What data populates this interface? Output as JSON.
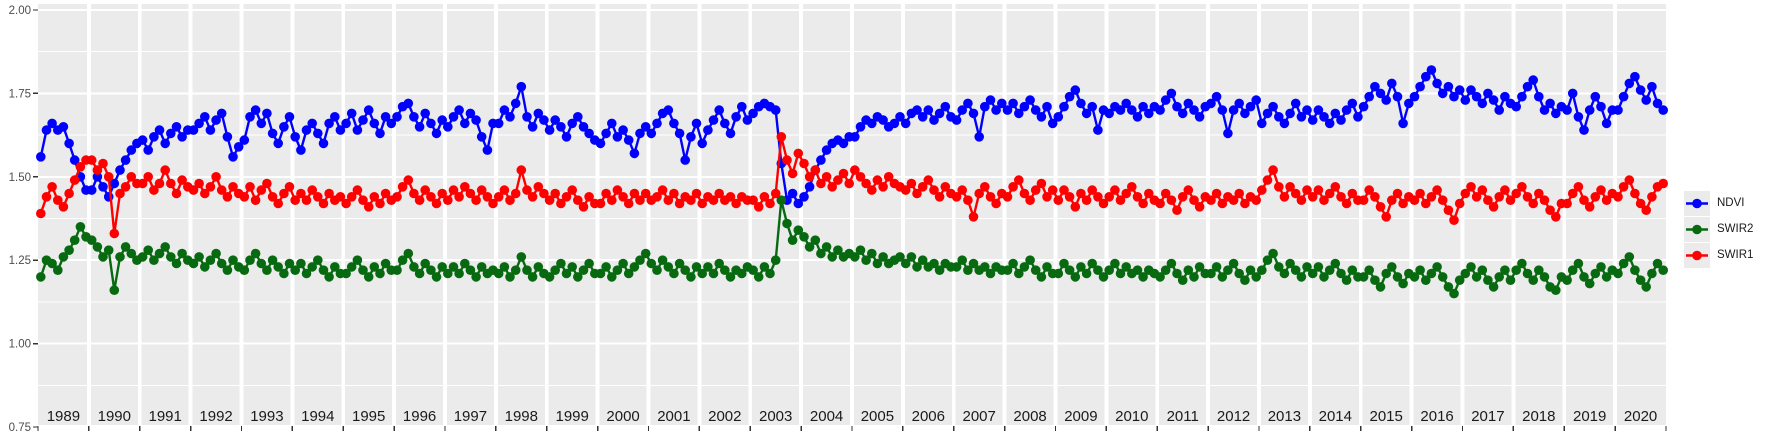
{
  "chart_data": {
    "type": "line",
    "title": "",
    "xlabel": "",
    "ylabel": "",
    "ylim": [
      0.75,
      2.0
    ],
    "grid": true,
    "legend_position": "right",
    "colors": {
      "panel_background": "#EBEBEB",
      "gridline": "#FFFFFF",
      "axis_text": "#4D4D4D",
      "year_label_text": "#1A1A1A",
      "tick_mark": "#333333"
    },
    "ytick_labels": [
      "2.00",
      "1.75",
      "1.50",
      "1.25",
      "1.00",
      "0.75"
    ],
    "ytick_values": [
      2.0,
      1.75,
      1.5,
      1.25,
      1.0,
      0.75
    ],
    "years": [
      1989,
      1990,
      1991,
      1992,
      1993,
      1994,
      1995,
      1996,
      1997,
      1998,
      1999,
      2000,
      2001,
      2002,
      2003,
      2004,
      2005,
      2006,
      2007,
      2008,
      2009,
      2010,
      2011,
      2012,
      2013,
      2014,
      2015,
      2016,
      2017,
      2018,
      2019,
      2020
    ],
    "points_per_year": 9,
    "series": [
      {
        "name": "NDVI",
        "color": "#0000FF",
        "values_by_year": [
          [
            1.56,
            1.64,
            1.66,
            1.64,
            1.65,
            1.6,
            1.55,
            1.5,
            1.46
          ],
          [
            1.46,
            1.5,
            1.47,
            1.44,
            1.48,
            1.52,
            1.55,
            1.58,
            1.6
          ],
          [
            1.61,
            1.58,
            1.62,
            1.64,
            1.6,
            1.63,
            1.65,
            1.62,
            1.64
          ],
          [
            1.64,
            1.66,
            1.68,
            1.64,
            1.67,
            1.69,
            1.62,
            1.56,
            1.59
          ],
          [
            1.61,
            1.68,
            1.7,
            1.66,
            1.69,
            1.63,
            1.6,
            1.65,
            1.68
          ],
          [
            1.62,
            1.58,
            1.64,
            1.66,
            1.63,
            1.6,
            1.66,
            1.68,
            1.64
          ],
          [
            1.66,
            1.69,
            1.64,
            1.67,
            1.7,
            1.66,
            1.63,
            1.68,
            1.66
          ],
          [
            1.68,
            1.71,
            1.72,
            1.68,
            1.65,
            1.69,
            1.66,
            1.63,
            1.67
          ],
          [
            1.65,
            1.68,
            1.7,
            1.66,
            1.69,
            1.67,
            1.62,
            1.58,
            1.66
          ],
          [
            1.66,
            1.7,
            1.68,
            1.72,
            1.77,
            1.68,
            1.65,
            1.69,
            1.67
          ],
          [
            1.64,
            1.67,
            1.65,
            1.62,
            1.66,
            1.68,
            1.65,
            1.63,
            1.61
          ],
          [
            1.6,
            1.63,
            1.66,
            1.62,
            1.64,
            1.61,
            1.57,
            1.63,
            1.65
          ],
          [
            1.63,
            1.66,
            1.69,
            1.7,
            1.66,
            1.63,
            1.55,
            1.62,
            1.66
          ],
          [
            1.6,
            1.64,
            1.67,
            1.7,
            1.66,
            1.63,
            1.68,
            1.71,
            1.67
          ],
          [
            1.69,
            1.71,
            1.72,
            1.71,
            1.7,
            1.54,
            1.43,
            1.45,
            1.42
          ],
          [
            1.44,
            1.47,
            1.52,
            1.55,
            1.58,
            1.6,
            1.61,
            1.6,
            1.62
          ],
          [
            1.62,
            1.65,
            1.67,
            1.66,
            1.68,
            1.67,
            1.65,
            1.66,
            1.68
          ],
          [
            1.66,
            1.69,
            1.7,
            1.68,
            1.7,
            1.67,
            1.69,
            1.71,
            1.68
          ],
          [
            1.67,
            1.7,
            1.72,
            1.69,
            1.62,
            1.71,
            1.73,
            1.7,
            1.72
          ],
          [
            1.7,
            1.72,
            1.69,
            1.71,
            1.73,
            1.7,
            1.68,
            1.71,
            1.66
          ],
          [
            1.68,
            1.71,
            1.74,
            1.76,
            1.72,
            1.69,
            1.71,
            1.64,
            1.7
          ],
          [
            1.69,
            1.71,
            1.7,
            1.72,
            1.7,
            1.68,
            1.71,
            1.69,
            1.71
          ],
          [
            1.7,
            1.73,
            1.75,
            1.71,
            1.69,
            1.72,
            1.7,
            1.68,
            1.71
          ],
          [
            1.72,
            1.74,
            1.7,
            1.63,
            1.7,
            1.72,
            1.69,
            1.71,
            1.73
          ],
          [
            1.66,
            1.69,
            1.71,
            1.68,
            1.66,
            1.69,
            1.72,
            1.68,
            1.7
          ],
          [
            1.67,
            1.7,
            1.68,
            1.66,
            1.69,
            1.67,
            1.7,
            1.72,
            1.68
          ],
          [
            1.71,
            1.74,
            1.77,
            1.75,
            1.73,
            1.78,
            1.74,
            1.66,
            1.72
          ],
          [
            1.74,
            1.77,
            1.8,
            1.82,
            1.78,
            1.75,
            1.77,
            1.74,
            1.76
          ],
          [
            1.73,
            1.76,
            1.74,
            1.72,
            1.75,
            1.73,
            1.7,
            1.74,
            1.72
          ],
          [
            1.71,
            1.74,
            1.77,
            1.79,
            1.74,
            1.7,
            1.72,
            1.69,
            1.71
          ],
          [
            1.7,
            1.75,
            1.68,
            1.64,
            1.7,
            1.74,
            1.71,
            1.66,
            1.7
          ],
          [
            1.7,
            1.74,
            1.78,
            1.8,
            1.76,
            1.73,
            1.77,
            1.72,
            1.7
          ]
        ]
      },
      {
        "name": "SWIR2",
        "color": "#086A10",
        "values_by_year": [
          [
            1.2,
            1.25,
            1.24,
            1.22,
            1.26,
            1.28,
            1.31,
            1.35,
            1.32
          ],
          [
            1.31,
            1.29,
            1.26,
            1.28,
            1.16,
            1.26,
            1.29,
            1.27,
            1.25
          ],
          [
            1.26,
            1.28,
            1.25,
            1.27,
            1.29,
            1.26,
            1.24,
            1.27,
            1.25
          ],
          [
            1.24,
            1.26,
            1.23,
            1.25,
            1.27,
            1.24,
            1.22,
            1.25,
            1.23
          ],
          [
            1.22,
            1.25,
            1.27,
            1.24,
            1.22,
            1.25,
            1.23,
            1.21,
            1.24
          ],
          [
            1.22,
            1.24,
            1.21,
            1.23,
            1.25,
            1.22,
            1.2,
            1.23,
            1.21
          ],
          [
            1.21,
            1.23,
            1.25,
            1.22,
            1.2,
            1.23,
            1.21,
            1.24,
            1.22
          ],
          [
            1.22,
            1.25,
            1.27,
            1.23,
            1.21,
            1.24,
            1.22,
            1.2,
            1.23
          ],
          [
            1.21,
            1.23,
            1.21,
            1.24,
            1.22,
            1.2,
            1.23,
            1.21,
            1.22
          ],
          [
            1.21,
            1.23,
            1.2,
            1.22,
            1.26,
            1.22,
            1.2,
            1.23,
            1.21
          ],
          [
            1.2,
            1.22,
            1.24,
            1.21,
            1.23,
            1.2,
            1.22,
            1.24,
            1.21
          ],
          [
            1.21,
            1.23,
            1.2,
            1.22,
            1.24,
            1.21,
            1.23,
            1.25,
            1.27
          ],
          [
            1.24,
            1.22,
            1.25,
            1.23,
            1.21,
            1.24,
            1.22,
            1.2,
            1.23
          ],
          [
            1.21,
            1.23,
            1.21,
            1.24,
            1.22,
            1.2,
            1.22,
            1.21,
            1.23
          ],
          [
            1.22,
            1.2,
            1.23,
            1.21,
            1.25,
            1.43,
            1.36,
            1.31,
            1.34
          ],
          [
            1.32,
            1.29,
            1.31,
            1.27,
            1.29,
            1.26,
            1.28,
            1.26,
            1.27
          ],
          [
            1.26,
            1.28,
            1.25,
            1.27,
            1.24,
            1.26,
            1.24,
            1.25,
            1.26
          ],
          [
            1.24,
            1.26,
            1.23,
            1.25,
            1.23,
            1.24,
            1.22,
            1.24,
            1.23
          ],
          [
            1.23,
            1.25,
            1.22,
            1.24,
            1.22,
            1.23,
            1.21,
            1.23,
            1.22
          ],
          [
            1.22,
            1.24,
            1.21,
            1.23,
            1.25,
            1.22,
            1.2,
            1.23,
            1.21
          ],
          [
            1.21,
            1.24,
            1.22,
            1.2,
            1.23,
            1.21,
            1.24,
            1.22,
            1.2
          ],
          [
            1.22,
            1.24,
            1.21,
            1.23,
            1.21,
            1.22,
            1.2,
            1.22,
            1.21
          ],
          [
            1.2,
            1.22,
            1.24,
            1.21,
            1.19,
            1.22,
            1.2,
            1.23,
            1.21
          ],
          [
            1.21,
            1.23,
            1.2,
            1.22,
            1.24,
            1.21,
            1.19,
            1.22,
            1.2
          ],
          [
            1.22,
            1.25,
            1.27,
            1.23,
            1.21,
            1.24,
            1.22,
            1.2,
            1.23
          ],
          [
            1.21,
            1.23,
            1.2,
            1.22,
            1.24,
            1.21,
            1.19,
            1.22,
            1.2
          ],
          [
            1.2,
            1.22,
            1.19,
            1.17,
            1.21,
            1.23,
            1.2,
            1.18,
            1.21
          ],
          [
            1.2,
            1.22,
            1.19,
            1.21,
            1.23,
            1.2,
            1.17,
            1.15,
            1.19
          ],
          [
            1.21,
            1.23,
            1.2,
            1.22,
            1.19,
            1.17,
            1.2,
            1.22,
            1.19
          ],
          [
            1.22,
            1.24,
            1.21,
            1.19,
            1.22,
            1.2,
            1.17,
            1.16,
            1.2
          ],
          [
            1.19,
            1.22,
            1.24,
            1.2,
            1.18,
            1.21,
            1.23,
            1.2,
            1.22
          ],
          [
            1.21,
            1.24,
            1.26,
            1.22,
            1.19,
            1.17,
            1.21,
            1.24,
            1.22
          ]
        ]
      },
      {
        "name": "SWIR1",
        "color": "#FF0000",
        "values_by_year": [
          [
            1.39,
            1.44,
            1.47,
            1.43,
            1.41,
            1.45,
            1.49,
            1.53,
            1.55
          ],
          [
            1.55,
            1.52,
            1.54,
            1.5,
            1.33,
            1.45,
            1.47,
            1.5,
            1.48
          ],
          [
            1.48,
            1.5,
            1.46,
            1.48,
            1.52,
            1.48,
            1.45,
            1.49,
            1.47
          ],
          [
            1.46,
            1.48,
            1.45,
            1.47,
            1.5,
            1.46,
            1.44,
            1.47,
            1.45
          ],
          [
            1.44,
            1.47,
            1.43,
            1.46,
            1.48,
            1.44,
            1.42,
            1.45,
            1.47
          ],
          [
            1.43,
            1.45,
            1.43,
            1.46,
            1.44,
            1.42,
            1.45,
            1.43,
            1.44
          ],
          [
            1.42,
            1.44,
            1.46,
            1.43,
            1.41,
            1.44,
            1.42,
            1.45,
            1.43
          ],
          [
            1.44,
            1.47,
            1.49,
            1.45,
            1.43,
            1.46,
            1.44,
            1.42,
            1.45
          ],
          [
            1.43,
            1.46,
            1.44,
            1.47,
            1.45,
            1.43,
            1.46,
            1.44,
            1.42
          ],
          [
            1.44,
            1.46,
            1.43,
            1.45,
            1.52,
            1.46,
            1.44,
            1.47,
            1.45
          ],
          [
            1.43,
            1.45,
            1.42,
            1.44,
            1.46,
            1.43,
            1.41,
            1.44,
            1.42
          ],
          [
            1.42,
            1.45,
            1.43,
            1.46,
            1.44,
            1.42,
            1.45,
            1.43,
            1.45
          ],
          [
            1.43,
            1.44,
            1.46,
            1.43,
            1.45,
            1.42,
            1.44,
            1.43,
            1.45
          ],
          [
            1.42,
            1.44,
            1.43,
            1.45,
            1.43,
            1.44,
            1.42,
            1.44,
            1.43
          ],
          [
            1.43,
            1.41,
            1.44,
            1.42,
            1.45,
            1.62,
            1.55,
            1.51,
            1.57
          ],
          [
            1.54,
            1.5,
            1.52,
            1.48,
            1.5,
            1.47,
            1.49,
            1.51,
            1.48
          ],
          [
            1.52,
            1.5,
            1.48,
            1.46,
            1.49,
            1.47,
            1.5,
            1.48,
            1.47
          ],
          [
            1.46,
            1.48,
            1.45,
            1.47,
            1.49,
            1.46,
            1.44,
            1.47,
            1.45
          ],
          [
            1.44,
            1.46,
            1.43,
            1.38,
            1.45,
            1.47,
            1.44,
            1.42,
            1.45
          ],
          [
            1.44,
            1.47,
            1.49,
            1.45,
            1.43,
            1.46,
            1.48,
            1.44,
            1.46
          ],
          [
            1.43,
            1.46,
            1.44,
            1.41,
            1.45,
            1.43,
            1.46,
            1.44,
            1.42
          ],
          [
            1.44,
            1.46,
            1.43,
            1.45,
            1.47,
            1.44,
            1.42,
            1.45,
            1.43
          ],
          [
            1.42,
            1.45,
            1.43,
            1.4,
            1.44,
            1.46,
            1.43,
            1.41,
            1.44
          ],
          [
            1.43,
            1.45,
            1.42,
            1.44,
            1.43,
            1.45,
            1.42,
            1.44,
            1.43
          ],
          [
            1.46,
            1.49,
            1.52,
            1.47,
            1.44,
            1.47,
            1.45,
            1.43,
            1.46
          ],
          [
            1.44,
            1.46,
            1.43,
            1.45,
            1.47,
            1.44,
            1.42,
            1.45,
            1.43
          ],
          [
            1.43,
            1.46,
            1.44,
            1.41,
            1.38,
            1.43,
            1.45,
            1.42,
            1.44
          ],
          [
            1.43,
            1.45,
            1.42,
            1.44,
            1.46,
            1.43,
            1.4,
            1.37,
            1.42
          ],
          [
            1.45,
            1.47,
            1.44,
            1.46,
            1.43,
            1.41,
            1.44,
            1.46,
            1.43
          ],
          [
            1.45,
            1.47,
            1.44,
            1.42,
            1.45,
            1.43,
            1.4,
            1.38,
            1.42
          ],
          [
            1.42,
            1.45,
            1.47,
            1.43,
            1.41,
            1.44,
            1.46,
            1.43,
            1.45
          ],
          [
            1.44,
            1.47,
            1.49,
            1.45,
            1.42,
            1.4,
            1.44,
            1.47,
            1.48
          ]
        ]
      }
    ],
    "legend": {
      "entries": [
        "NDVI",
        "SWIR2",
        "SWIR1"
      ]
    }
  }
}
